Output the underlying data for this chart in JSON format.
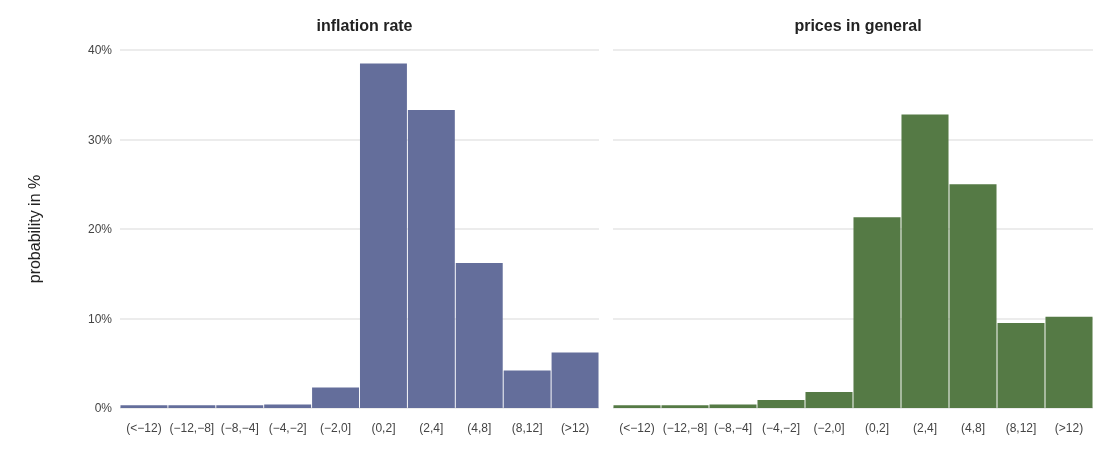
{
  "chart_data": [
    {
      "type": "bar",
      "title": "inflation rate",
      "ylabel": "probability in %",
      "categories": [
        "(<−12)",
        "(−12,−8]",
        "(−8,−4]",
        "(−4,−2]",
        "(−2,0]",
        "(0,2]",
        "(2,4]",
        "(4,8]",
        "(8,12]",
        "(>12)"
      ],
      "values": [
        0.3,
        0.3,
        0.3,
        0.4,
        2.3,
        38.5,
        33.3,
        16.2,
        4.2,
        6.2
      ],
      "color": "#646e9b",
      "ylim": [
        0,
        40
      ],
      "yticks": [
        {
          "value": 0,
          "label": "0%"
        },
        {
          "value": 10,
          "label": "10%"
        },
        {
          "value": 20,
          "label": "20%"
        },
        {
          "value": 30,
          "label": "30%"
        },
        {
          "value": 40,
          "label": "40%"
        }
      ],
      "grid": "y"
    },
    {
      "type": "bar",
      "title": "prices in general",
      "categories": [
        "(<−12)",
        "(−12,−8]",
        "(−8,−4]",
        "(−4,−2]",
        "(−2,0]",
        "(0,2]",
        "(2,4]",
        "(4,8]",
        "(8,12]",
        "(>12)"
      ],
      "values": [
        0.3,
        0.3,
        0.4,
        0.9,
        1.8,
        21.3,
        32.8,
        25.0,
        9.5,
        10.2
      ],
      "color": "#557a45",
      "ylim": [
        0,
        40
      ],
      "yticks": [
        0,
        10,
        20,
        30,
        40
      ],
      "grid": "y",
      "tick_labels": "x"
    }
  ]
}
